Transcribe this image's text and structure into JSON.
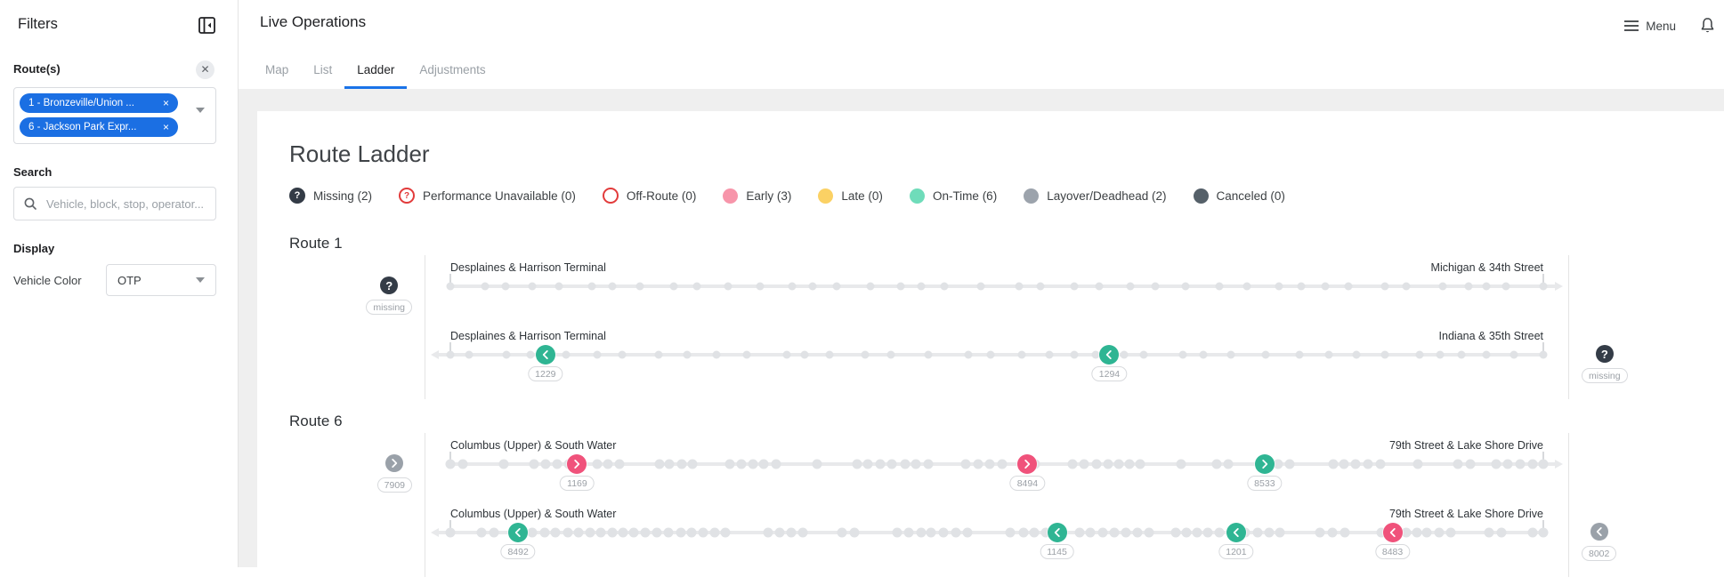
{
  "sidebar": {
    "title": "Filters",
    "routes_label": "Route(s)",
    "route_chips": [
      {
        "label": "1 - Bronzeville/Union ..."
      },
      {
        "label": "6 - Jackson Park Expr..."
      }
    ],
    "search_label": "Search",
    "search_placeholder": "Vehicle, block, stop, operator...",
    "display_label": "Display",
    "vehicle_color_label": "Vehicle Color",
    "vehicle_color_value": "OTP"
  },
  "header": {
    "title": "Live Operations",
    "menu_label": "Menu",
    "tabs": [
      {
        "label": "Map",
        "active": false
      },
      {
        "label": "List",
        "active": false
      },
      {
        "label": "Ladder",
        "active": true
      },
      {
        "label": "Adjustments",
        "active": false
      }
    ]
  },
  "main": {
    "title": "Route Ladder",
    "missing_pill_label": "missing",
    "legend": [
      {
        "label": "Missing (2)",
        "type": "missing",
        "color": "#333B46"
      },
      {
        "label": "Performance Unavailable (0)",
        "type": "question-outline",
        "color": "#E23B3B"
      },
      {
        "label": "Off-Route (0)",
        "type": "ring",
        "color": "#E23B3B"
      },
      {
        "label": "Early (3)",
        "type": "dot",
        "color": "#F795AA"
      },
      {
        "label": "Late (0)",
        "type": "dot",
        "color": "#FBD164"
      },
      {
        "label": "On-Time (6)",
        "type": "dot",
        "color": "#6FDCBA"
      },
      {
        "label": "Layover/Deadhead (2)",
        "type": "dot",
        "color": "#9CA3AC"
      },
      {
        "label": "Canceled (0)",
        "type": "dot",
        "color": "#556069"
      }
    ],
    "routes": [
      {
        "name": "Route 1",
        "rows": [
          {
            "from": "Desplaines & Harrison Terminal",
            "to": "Michigan & 34th Street",
            "direction": "right",
            "density": "sparse",
            "vehicles": [],
            "off_left": {
              "id": "missing",
              "status": "missing"
            },
            "off_right": null
          },
          {
            "from": "Desplaines & Harrison Terminal",
            "to": "Indiana & 35th Street",
            "direction": "left",
            "density": "sparse",
            "vehicles": [
              {
                "id": "1229",
                "status": "on-time",
                "pos": 8.7
              },
              {
                "id": "1294",
                "status": "on-time",
                "pos": 60.3
              }
            ],
            "off_left": null,
            "off_right": {
              "id": "missing",
              "status": "missing"
            }
          }
        ]
      },
      {
        "name": "Route 6",
        "rows": [
          {
            "from": "Columbus (Upper) & South Water",
            "to": "79th Street & Lake Shore Drive",
            "direction": "right",
            "density": "dense",
            "vehicles": [
              {
                "id": "1169",
                "status": "early",
                "pos": 11.6
              },
              {
                "id": "8494",
                "status": "early",
                "pos": 52.8
              },
              {
                "id": "8533",
                "status": "on-time",
                "pos": 74.5
              }
            ],
            "off_left": {
              "id": "7909",
              "status": "layover"
            },
            "off_right": null
          },
          {
            "from": "Columbus (Upper) & South Water",
            "to": "79th Street & Lake Shore Drive",
            "direction": "left",
            "density": "dense",
            "vehicles": [
              {
                "id": "8492",
                "status": "on-time",
                "pos": 6.2
              },
              {
                "id": "1145",
                "status": "on-time",
                "pos": 55.5
              },
              {
                "id": "1201",
                "status": "on-time",
                "pos": 71.9
              },
              {
                "id": "8483",
                "status": "early",
                "pos": 86.2
              }
            ],
            "off_left": null,
            "off_right": {
              "id": "8002",
              "status": "layover"
            }
          }
        ]
      }
    ]
  },
  "colors": {
    "accent": "#1A73E8",
    "on_time": "#2FB593",
    "early": "#F0527B",
    "late": "#FBD164",
    "layover": "#9AA1A9",
    "canceled": "#556069",
    "missing": "#343C47",
    "alert_red": "#E23B3B"
  }
}
